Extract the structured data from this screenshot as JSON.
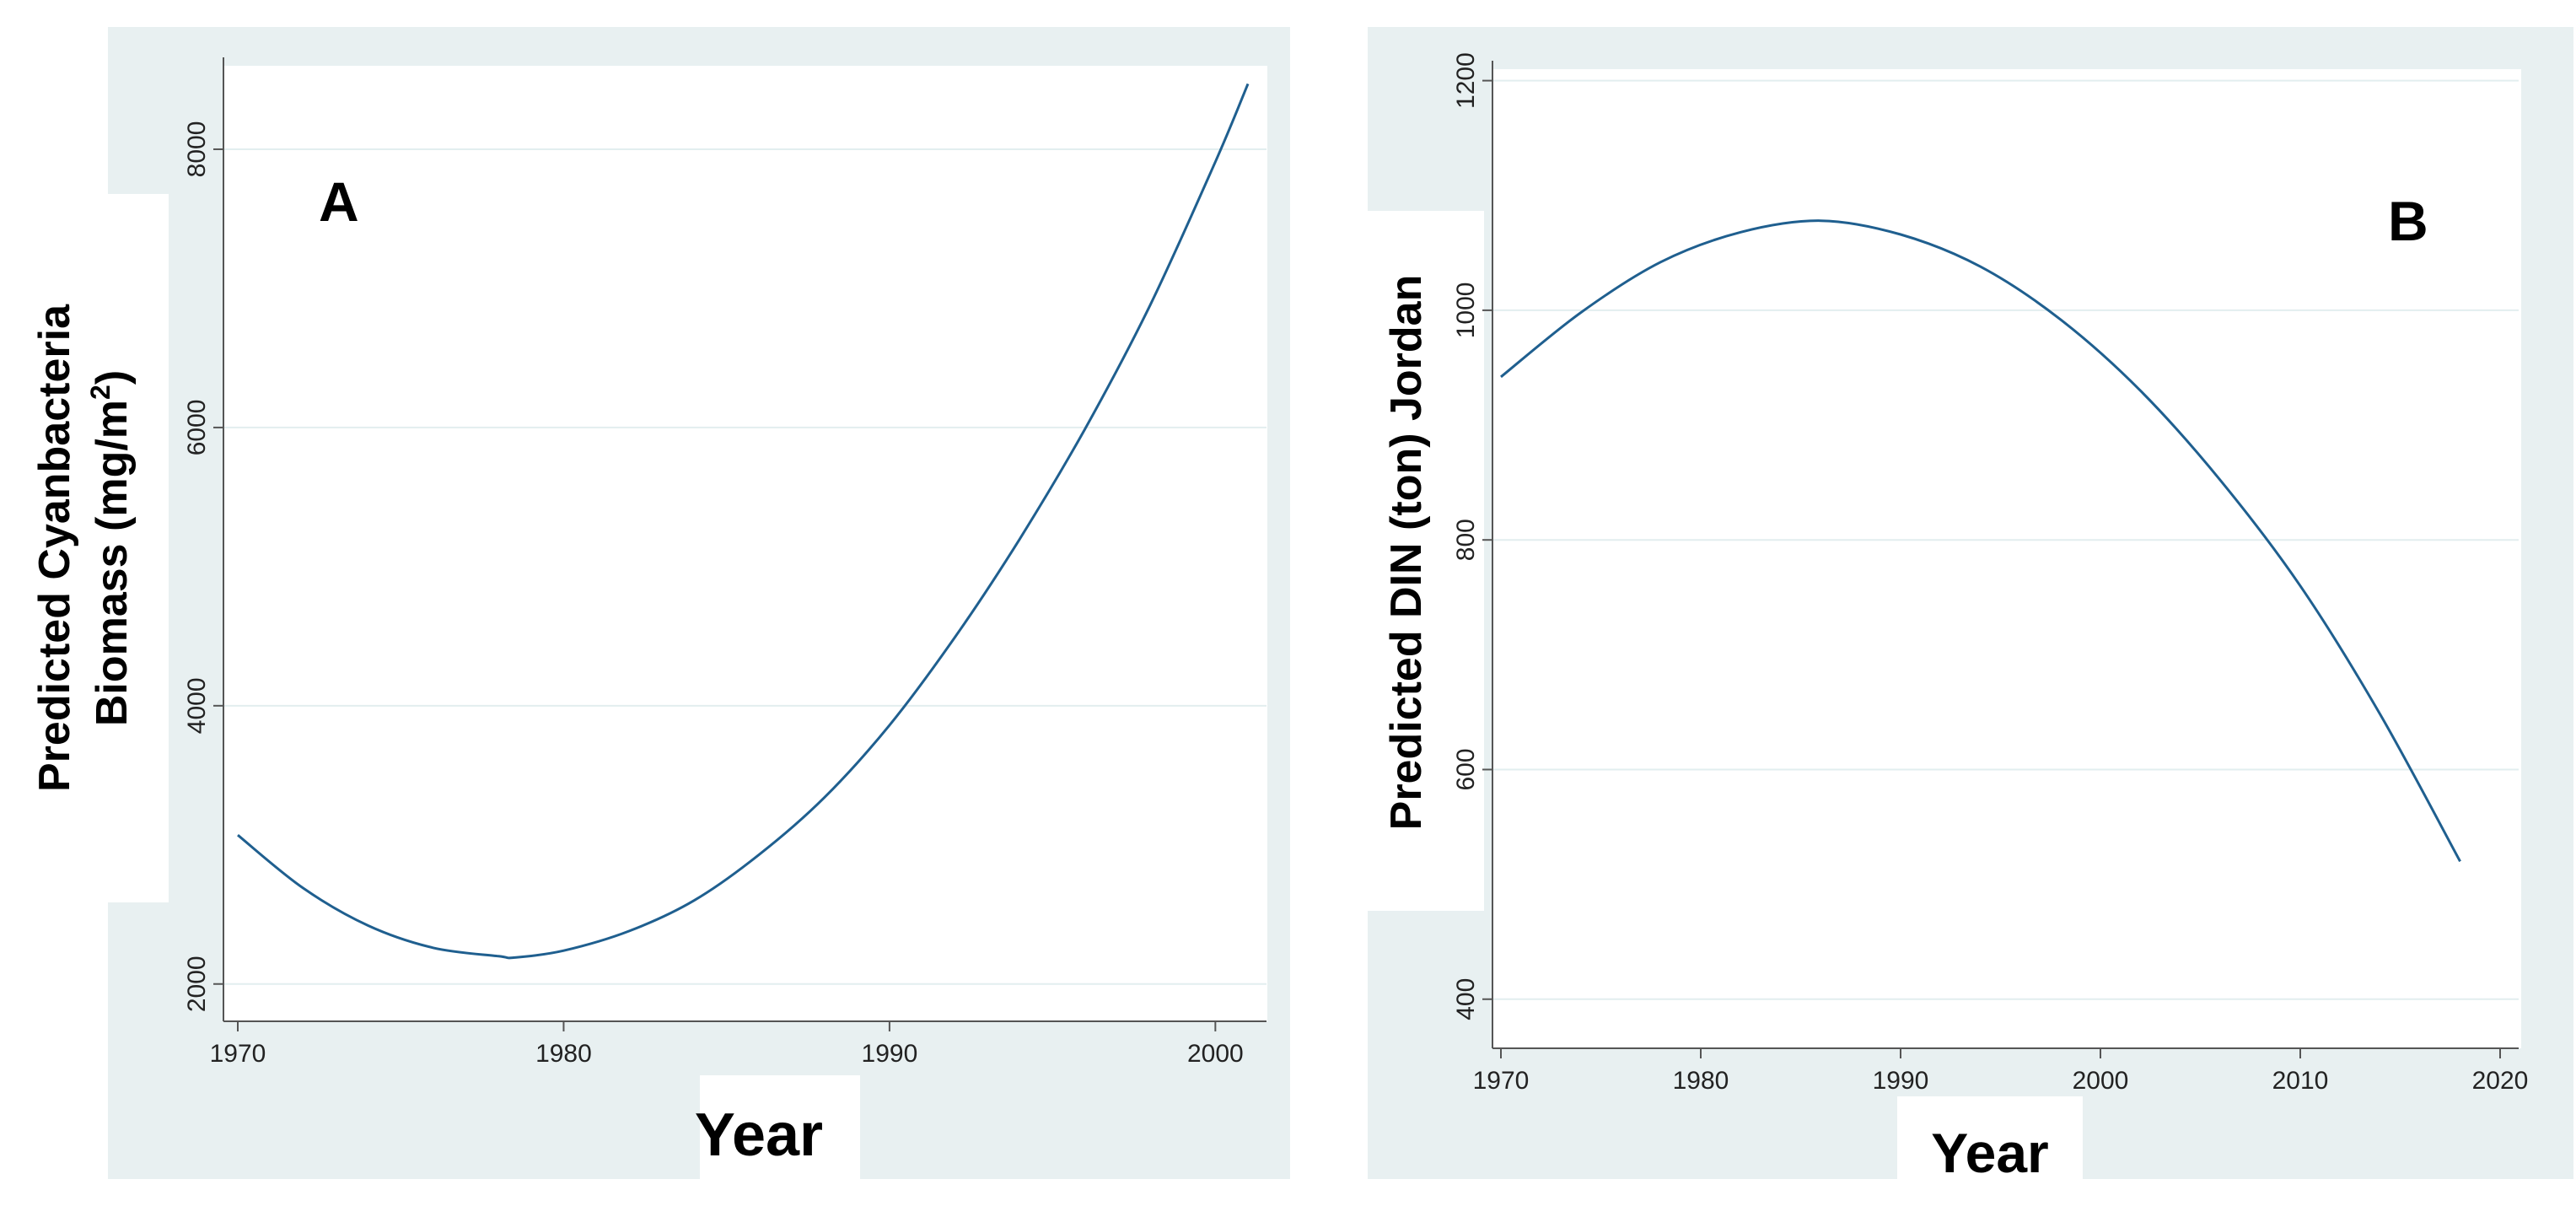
{
  "colors": {
    "panel_bg": "#e8f0f1",
    "plot_bg": "#ffffff",
    "gridline": "#e2eeef",
    "axis": "#555555",
    "line": "#1f5f8f"
  },
  "chart_data": [
    {
      "type": "line",
      "panel_label": "A",
      "xlabel": "Year",
      "ylabel_lines": [
        "Predicted Cyanbacteria",
        "Biomass (mg/m",
        "2",
        ")"
      ],
      "xlim": [
        1970,
        2001
      ],
      "ylim": [
        1950,
        8600
      ],
      "x_ticks": [
        "1970",
        "1980",
        "1990",
        "2000"
      ],
      "y_ticks": [
        "2000",
        "4000",
        "6000",
        "8000"
      ],
      "grid": true,
      "series": [
        {
          "x": [
            1970,
            1972,
            1974,
            1976,
            1978,
            1978.5,
            1980,
            1982,
            1984,
            1986,
            1988,
            1990,
            1992,
            1994,
            1996,
            1998,
            2000,
            2001
          ],
          "y": [
            3070,
            2690,
            2420,
            2260,
            2200,
            2190,
            2240,
            2380,
            2600,
            2930,
            3340,
            3860,
            4490,
            5200,
            5990,
            6880,
            7910,
            8470
          ]
        }
      ]
    },
    {
      "type": "line",
      "panel_label": "B",
      "xlabel": "Year",
      "ylabel": "Predicted DIN (ton) Jordan",
      "xlim": [
        1970,
        2020
      ],
      "ylim": [
        380,
        1210
      ],
      "x_ticks": [
        "1970",
        "1980",
        "1990",
        "2000",
        "2010",
        "2020"
      ],
      "y_ticks": [
        "400",
        "600",
        "800",
        "1000",
        "1200"
      ],
      "grid": true,
      "series": [
        {
          "x": [
            1970,
            1974,
            1978,
            1982,
            1986,
            1990,
            1994,
            1998,
            2002,
            2006,
            2010,
            2014,
            2018
          ],
          "y": [
            942,
            998,
            1042,
            1068,
            1078,
            1066,
            1038,
            992,
            930,
            852,
            760,
            648,
            520
          ]
        }
      ]
    }
  ]
}
